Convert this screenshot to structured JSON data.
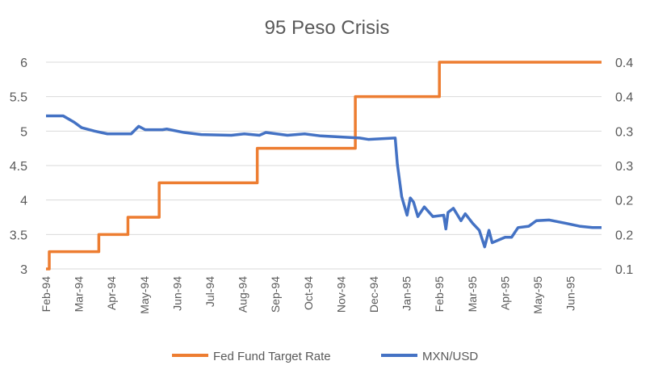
{
  "chart_data": {
    "type": "line",
    "title": "95 Peso Crisis",
    "xlabel": "",
    "ylabel": "",
    "x_tick_labels": [
      "Feb-94",
      "Mar-94",
      "Apr-94",
      "May-94",
      "Jun-94",
      "Jul-94",
      "Aug-94",
      "Sep-94",
      "Oct-94",
      "Nov-94",
      "Dec-94",
      "Jan-95",
      "Feb-95",
      "Mar-95",
      "Apr-95",
      "May-95",
      "Jun-95"
    ],
    "xlim": [
      "1994-02-01",
      "1995-07-03"
    ],
    "y_left": {
      "lim": [
        3,
        6
      ],
      "tick_labels": [
        "3",
        "3.5",
        "4",
        "4.5",
        "5",
        "5.5",
        "6"
      ]
    },
    "y_right": {
      "lim": [
        0.1,
        0.4
      ],
      "tick_labels": [
        "0.1",
        "0.2",
        "0.2",
        "0.3",
        "0.3",
        "0.4",
        "0.4"
      ]
    },
    "grid": true,
    "legend_position": "bottom",
    "series": [
      {
        "name": "Fed Fund Target Rate",
        "axis": "left",
        "color": "#ED7D31",
        "step": true,
        "points": [
          [
            "1994-02-01",
            3
          ],
          [
            "1994-02-04",
            3.25
          ],
          [
            "1994-03-22",
            3.5
          ],
          [
            "1994-04-18",
            3.75
          ],
          [
            "1994-05-17",
            4.25
          ],
          [
            "1994-08-16",
            4.75
          ],
          [
            "1994-11-15",
            5.5
          ],
          [
            "1995-02-01",
            6
          ],
          [
            "1995-07-03",
            6
          ]
        ]
      },
      {
        "name": "MXN/USD",
        "axis": "right",
        "color": "#4472C4",
        "step": false,
        "points": [
          [
            "1994-02-01",
            0.322
          ],
          [
            "1994-02-17",
            0.322
          ],
          [
            "1994-02-27",
            0.313
          ],
          [
            "1994-03-06",
            0.305
          ],
          [
            "1994-03-18",
            0.3
          ],
          [
            "1994-03-30",
            0.296
          ],
          [
            "1994-04-21",
            0.296
          ],
          [
            "1994-04-28",
            0.307
          ],
          [
            "1994-05-04",
            0.302
          ],
          [
            "1994-05-20",
            0.302
          ],
          [
            "1994-05-24",
            0.303
          ],
          [
            "1994-06-09",
            0.298
          ],
          [
            "1994-06-25",
            0.295
          ],
          [
            "1994-07-23",
            0.294
          ],
          [
            "1994-08-04",
            0.296
          ],
          [
            "1994-08-18",
            0.294
          ],
          [
            "1994-08-24",
            0.298
          ],
          [
            "1994-09-13",
            0.294
          ],
          [
            "1994-09-29",
            0.296
          ],
          [
            "1994-10-14",
            0.293
          ],
          [
            "1994-11-19",
            0.29
          ],
          [
            "1994-11-27",
            0.288
          ],
          [
            "1994-12-22",
            0.29
          ],
          [
            "1994-12-24",
            0.252
          ],
          [
            "1994-12-28",
            0.205
          ],
          [
            "1995-01-02",
            0.178
          ],
          [
            "1995-01-05",
            0.203
          ],
          [
            "1995-01-08",
            0.197
          ],
          [
            "1995-01-12",
            0.176
          ],
          [
            "1995-01-18",
            0.19
          ],
          [
            "1995-01-26",
            0.176
          ],
          [
            "1995-02-05",
            0.178
          ],
          [
            "1995-02-07",
            0.158
          ],
          [
            "1995-02-09",
            0.182
          ],
          [
            "1995-02-14",
            0.188
          ],
          [
            "1995-02-21",
            0.17
          ],
          [
            "1995-02-25",
            0.18
          ],
          [
            "1995-03-04",
            0.166
          ],
          [
            "1995-03-10",
            0.156
          ],
          [
            "1995-03-15",
            0.132
          ],
          [
            "1995-03-19",
            0.156
          ],
          [
            "1995-03-22",
            0.138
          ],
          [
            "1995-03-28",
            0.142
          ],
          [
            "1995-04-03",
            0.146
          ],
          [
            "1995-04-09",
            0.146
          ],
          [
            "1995-04-15",
            0.16
          ],
          [
            "1995-04-25",
            0.162
          ],
          [
            "1995-05-02",
            0.17
          ],
          [
            "1995-05-14",
            0.171
          ],
          [
            "1995-05-30",
            0.166
          ],
          [
            "1995-06-11",
            0.162
          ],
          [
            "1995-06-23",
            0.16
          ],
          [
            "1995-07-03",
            0.16
          ]
        ]
      }
    ]
  }
}
